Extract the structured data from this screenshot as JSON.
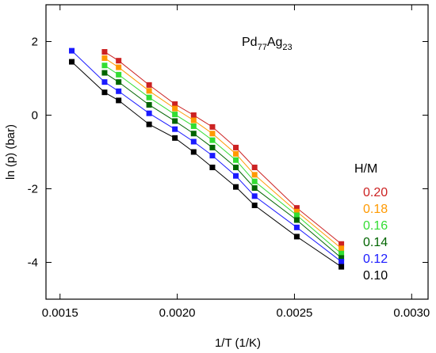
{
  "chart_data": {
    "type": "scatter",
    "annotation": [
      "Pd",
      "77",
      "Ag",
      "23"
    ],
    "x_label": "1/T (1/K)",
    "y_label": "ln (p) (bar)",
    "legend_title": "H/M",
    "x": [
      0.00155,
      0.00169,
      0.00175,
      0.00188,
      0.00199,
      0.00207,
      0.00215,
      0.00225,
      0.00233,
      0.00251,
      0.0027
    ],
    "series": [
      {
        "name": "0.20",
        "color": "#cc2222",
        "values": [
          null,
          1.72,
          1.48,
          0.82,
          0.3,
          0.0,
          -0.32,
          -0.88,
          -1.42,
          -2.52,
          -3.5
        ]
      },
      {
        "name": "0.18",
        "color": "#ff9900",
        "values": [
          null,
          1.55,
          1.3,
          0.66,
          0.18,
          -0.14,
          -0.5,
          -1.05,
          -1.62,
          -2.62,
          -3.62
        ]
      },
      {
        "name": "0.16",
        "color": "#33dd33",
        "values": [
          null,
          1.35,
          1.1,
          0.48,
          0.02,
          -0.3,
          -0.68,
          -1.22,
          -1.8,
          -2.72,
          -3.76
        ]
      },
      {
        "name": "0.14",
        "color": "#006400",
        "values": [
          null,
          1.15,
          0.9,
          0.28,
          -0.16,
          -0.5,
          -0.88,
          -1.42,
          -1.98,
          -2.85,
          -3.88
        ]
      },
      {
        "name": "0.12",
        "color": "#1a1aff",
        "values": [
          1.75,
          0.9,
          0.65,
          0.05,
          -0.38,
          -0.72,
          -1.1,
          -1.65,
          -2.2,
          -3.05,
          -3.98
        ]
      },
      {
        "name": "0.10",
        "color": "#000000",
        "values": [
          1.45,
          0.62,
          0.4,
          -0.25,
          -0.62,
          -1.0,
          -1.42,
          -1.95,
          -2.45,
          -3.3,
          -4.12
        ]
      }
    ],
    "xlim": [
      0.00144,
      0.00307
    ],
    "xticks": [
      0.0015,
      {
        "value": 0.002,
        "label": "0.0020"
      },
      0.0025,
      {
        "value": 0.003,
        "label": "0.0030"
      }
    ],
    "ylim": [
      -5,
      3
    ],
    "yticks": [
      -4,
      -2,
      0,
      2
    ]
  }
}
